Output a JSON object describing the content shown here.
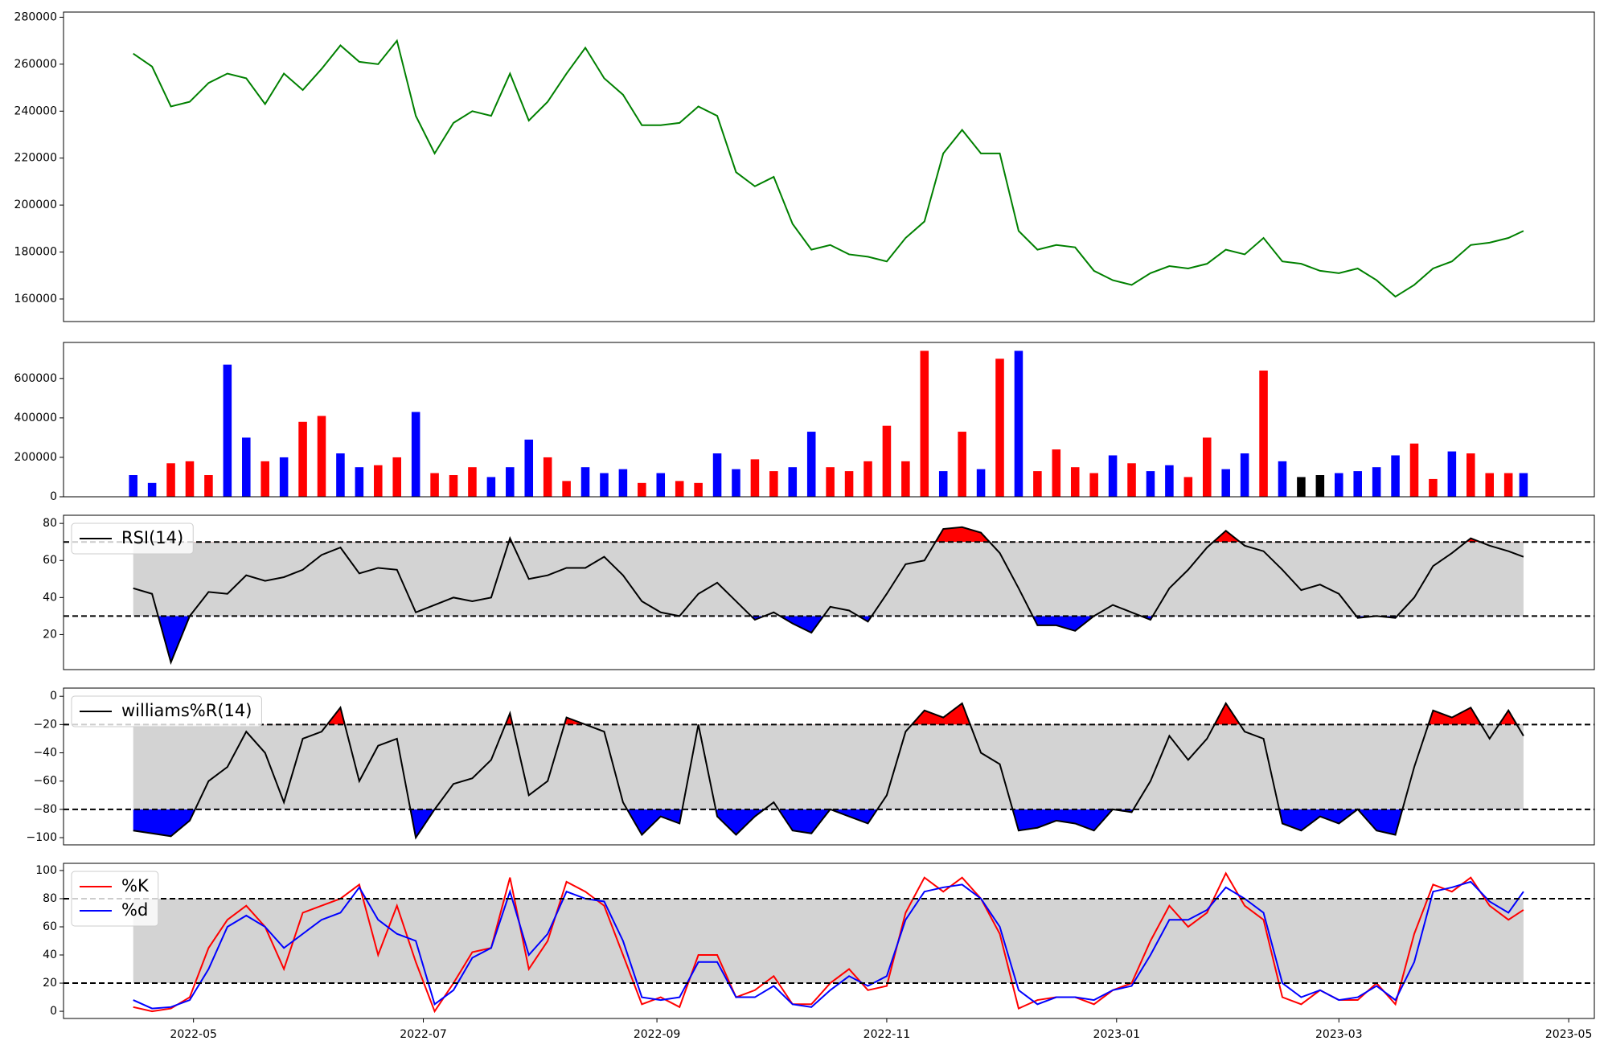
{
  "chart_data": [
    {
      "type": "line",
      "x": [
        19097,
        19102,
        19107,
        19112,
        19117,
        19122,
        19127,
        19132,
        19137,
        19142,
        19147,
        19152,
        19157,
        19162,
        19167,
        19172,
        19177,
        19182,
        19187,
        19192,
        19197,
        19202,
        19207,
        19212,
        19217,
        19222,
        19227,
        19232,
        19237,
        19242,
        19247,
        19252,
        19257,
        19262,
        19267,
        19272,
        19277,
        19282,
        19287,
        19292,
        19297,
        19302,
        19307,
        19312,
        19317,
        19322,
        19327,
        19332,
        19337,
        19342,
        19347,
        19352,
        19357,
        19362,
        19367,
        19372,
        19377,
        19382,
        19387,
        19392,
        19397,
        19402,
        19407,
        19412,
        19417,
        19422,
        19427,
        19432,
        19437,
        19442,
        19447,
        19452,
        19457,
        19462,
        19466
      ],
      "xlim": [
        19078.5,
        19484.8
      ],
      "ylim": [
        150400,
        282200
      ],
      "yticks": [
        160000,
        180000,
        200000,
        220000,
        240000,
        260000,
        280000
      ],
      "series": [
        {
          "color": "green",
          "values": [
            264500,
            259000,
            242000,
            244000,
            252000,
            256000,
            254000,
            243000,
            256000,
            249000,
            258000,
            268000,
            261000,
            260000,
            270000,
            238000,
            222000,
            235000,
            240000,
            238000,
            256000,
            236000,
            244000,
            256000,
            267000,
            254000,
            247000,
            234000,
            234000,
            235000,
            242000,
            238000,
            214000,
            208000,
            212000,
            192000,
            181000,
            183000,
            179000,
            178000,
            176000,
            186000,
            193000,
            222000,
            232000,
            222000,
            222000,
            189000,
            181000,
            183000,
            182000,
            172000,
            168000,
            166000,
            171000,
            174000,
            173000,
            175000,
            181000,
            179000,
            186000,
            176000,
            175000,
            172000,
            171000,
            173000,
            168000,
            161000,
            166000,
            173000,
            176000,
            183000,
            184000,
            186000,
            189000
          ]
        }
      ]
    },
    {
      "type": "bar",
      "x": [
        19097,
        19102,
        19107,
        19112,
        19117,
        19122,
        19127,
        19132,
        19137,
        19142,
        19147,
        19152,
        19157,
        19162,
        19167,
        19172,
        19177,
        19182,
        19187,
        19192,
        19197,
        19202,
        19207,
        19212,
        19217,
        19222,
        19227,
        19232,
        19237,
        19242,
        19247,
        19252,
        19257,
        19262,
        19267,
        19272,
        19277,
        19282,
        19287,
        19292,
        19297,
        19302,
        19307,
        19312,
        19317,
        19322,
        19327,
        19332,
        19337,
        19342,
        19347,
        19352,
        19357,
        19362,
        19367,
        19372,
        19377,
        19382,
        19387,
        19392,
        19397,
        19402,
        19407,
        19412,
        19417,
        19422,
        19427,
        19432,
        19437,
        19442,
        19447,
        19452,
        19457,
        19462,
        19466
      ],
      "xlim": [
        19078.5,
        19484.8
      ],
      "ylim": [
        0,
        782600
      ],
      "yticks": [
        0,
        200000,
        400000,
        600000
      ],
      "values": [
        110000,
        70000,
        170000,
        180000,
        110000,
        670000,
        300000,
        180000,
        200000,
        380000,
        410000,
        220000,
        150000,
        160000,
        200000,
        430000,
        120000,
        110000,
        150000,
        100000,
        150000,
        290000,
        200000,
        80000,
        150000,
        120000,
        140000,
        70000,
        120000,
        80000,
        70000,
        220000,
        140000,
        190000,
        130000,
        150000,
        330000,
        150000,
        130000,
        180000,
        360000,
        180000,
        740000,
        130000,
        330000,
        140000,
        700000,
        740000,
        130000,
        240000,
        150000,
        120000,
        210000,
        170000,
        130000,
        160000,
        100000,
        300000,
        140000,
        220000,
        640000,
        180000,
        100000,
        110000,
        120000,
        130000,
        150000,
        210000,
        270000,
        90000,
        230000,
        220000,
        120000,
        120000,
        120000
      ],
      "bar_colors": [
        "blue",
        "blue",
        "red",
        "red",
        "red",
        "blue",
        "blue",
        "red",
        "blue",
        "red",
        "red",
        "blue",
        "blue",
        "red",
        "red",
        "blue",
        "red",
        "red",
        "red",
        "blue",
        "blue",
        "blue",
        "red",
        "red",
        "blue",
        "blue",
        "blue",
        "red",
        "blue",
        "red",
        "red",
        "blue",
        "blue",
        "red",
        "red",
        "blue",
        "blue",
        "red",
        "red",
        "red",
        "red",
        "red",
        "red",
        "blue",
        "red",
        "blue",
        "red",
        "blue",
        "red",
        "red",
        "red",
        "red",
        "blue",
        "red",
        "blue",
        "blue",
        "red",
        "red",
        "blue",
        "blue",
        "red",
        "blue",
        "black",
        "black",
        "blue",
        "blue",
        "blue",
        "blue",
        "red",
        "red",
        "blue",
        "red",
        "red",
        "red",
        "blue"
      ]
    },
    {
      "type": "line",
      "x": [
        19097,
        19102,
        19107,
        19112,
        19117,
        19122,
        19127,
        19132,
        19137,
        19142,
        19147,
        19152,
        19157,
        19162,
        19167,
        19172,
        19177,
        19182,
        19187,
        19192,
        19197,
        19202,
        19207,
        19212,
        19217,
        19222,
        19227,
        19232,
        19237,
        19242,
        19247,
        19252,
        19257,
        19262,
        19267,
        19272,
        19277,
        19282,
        19287,
        19292,
        19297,
        19302,
        19307,
        19312,
        19317,
        19322,
        19327,
        19332,
        19337,
        19342,
        19347,
        19352,
        19357,
        19362,
        19367,
        19372,
        19377,
        19382,
        19387,
        19392,
        19397,
        19402,
        19407,
        19412,
        19417,
        19422,
        19427,
        19432,
        19437,
        19442,
        19447,
        19452,
        19457,
        19462,
        19466
      ],
      "xlim": [
        19078.5,
        19484.8
      ],
      "ylim": [
        1.1,
        84.4
      ],
      "yticks": [
        20,
        40,
        60,
        80
      ],
      "hlines": [
        70,
        30
      ],
      "band_color": "#d3d3d3",
      "above_color": "red",
      "below_color": "blue",
      "legend": "upper left",
      "series": [
        {
          "name": "RSI(14)",
          "color": "black",
          "values": [
            45,
            42,
            5,
            30,
            43,
            42,
            52,
            49,
            51,
            55,
            63,
            67,
            53,
            56,
            55,
            32,
            36,
            40,
            38,
            40,
            72,
            50,
            52,
            56,
            56,
            62,
            52,
            38,
            32,
            30,
            42,
            48,
            38,
            28,
            32,
            26,
            21,
            35,
            33,
            27,
            42,
            58,
            60,
            77,
            78,
            75,
            64,
            45,
            25,
            25,
            22,
            30,
            36,
            32,
            28,
            45,
            55,
            67,
            76,
            68,
            65,
            55,
            44,
            47,
            42,
            29,
            30,
            29,
            40,
            57,
            64,
            72,
            68,
            65,
            62
          ]
        }
      ]
    },
    {
      "type": "line",
      "x": [
        19097,
        19102,
        19107,
        19112,
        19117,
        19122,
        19127,
        19132,
        19137,
        19142,
        19147,
        19152,
        19157,
        19162,
        19167,
        19172,
        19177,
        19182,
        19187,
        19192,
        19197,
        19202,
        19207,
        19212,
        19217,
        19222,
        19227,
        19232,
        19237,
        19242,
        19247,
        19252,
        19257,
        19262,
        19267,
        19272,
        19277,
        19282,
        19287,
        19292,
        19297,
        19302,
        19307,
        19312,
        19317,
        19322,
        19327,
        19332,
        19337,
        19342,
        19347,
        19352,
        19357,
        19362,
        19367,
        19372,
        19377,
        19382,
        19387,
        19392,
        19397,
        19402,
        19407,
        19412,
        19417,
        19422,
        19427,
        19432,
        19437,
        19442,
        19447,
        19452,
        19457,
        19462,
        19466
      ],
      "xlim": [
        19078.5,
        19484.8
      ],
      "ylim": [
        -105.1,
        5.8
      ],
      "yticks": [
        {
          "value": -100,
          "label": "−100"
        },
        {
          "value": -80,
          "label": "−80"
        },
        {
          "value": -60,
          "label": "−60"
        },
        {
          "value": -40,
          "label": "−40"
        },
        {
          "value": -20,
          "label": "−20"
        },
        0
      ],
      "hlines": [
        -20,
        -80
      ],
      "band_color": "#d3d3d3",
      "above_color": "red",
      "below_color": "blue",
      "legend": "upper left",
      "series": [
        {
          "name": "williams%R(14)",
          "color": "black",
          "values": [
            -95,
            -97,
            -99,
            -88,
            -60,
            -50,
            -25,
            -40,
            -75,
            -30,
            -25,
            -8,
            -60,
            -35,
            -30,
            -100,
            -80,
            -62,
            -58,
            -45,
            -12,
            -70,
            -60,
            -15,
            -20,
            -25,
            -75,
            -98,
            -85,
            -90,
            -20,
            -85,
            -98,
            -85,
            -75,
            -95,
            -97,
            -80,
            -85,
            -90,
            -70,
            -25,
            -10,
            -15,
            -5,
            -40,
            -48,
            -95,
            -93,
            -88,
            -90,
            -95,
            -80,
            -82,
            -60,
            -28,
            -45,
            -30,
            -5,
            -25,
            -30,
            -90,
            -95,
            -85,
            -90,
            -80,
            -95,
            -98,
            -50,
            -10,
            -15,
            -8,
            -30,
            -10,
            -28
          ]
        }
      ]
    },
    {
      "type": "line",
      "x": [
        19097,
        19102,
        19107,
        19112,
        19117,
        19122,
        19127,
        19132,
        19137,
        19142,
        19147,
        19152,
        19157,
        19162,
        19167,
        19172,
        19177,
        19182,
        19187,
        19192,
        19197,
        19202,
        19207,
        19212,
        19217,
        19222,
        19227,
        19232,
        19237,
        19242,
        19247,
        19252,
        19257,
        19262,
        19267,
        19272,
        19277,
        19282,
        19287,
        19292,
        19297,
        19302,
        19307,
        19312,
        19317,
        19322,
        19327,
        19332,
        19337,
        19342,
        19347,
        19352,
        19357,
        19362,
        19367,
        19372,
        19377,
        19382,
        19387,
        19392,
        19397,
        19402,
        19407,
        19412,
        19417,
        19422,
        19427,
        19432,
        19437,
        19442,
        19447,
        19452,
        19457,
        19462,
        19466
      ],
      "xlim": [
        19078.5,
        19484.8
      ],
      "ylim": [
        -5.1,
        105.1
      ],
      "yticks": [
        0,
        20,
        40,
        60,
        80,
        100
      ],
      "xticks": [
        {
          "value": 19113,
          "label": "2022-05"
        },
        {
          "value": 19174,
          "label": "2022-07"
        },
        {
          "value": 19236,
          "label": "2022-09"
        },
        {
          "value": 19297,
          "label": "2022-11"
        },
        {
          "value": 19358,
          "label": "2023-01"
        },
        {
          "value": 19417,
          "label": "2023-03"
        },
        {
          "value": 19478,
          "label": "2023-05"
        }
      ],
      "hlines": [
        80,
        20
      ],
      "band_color": "#d3d3d3",
      "legend": "upper left",
      "series": [
        {
          "name": "%K",
          "color": "red",
          "values": [
            3,
            0,
            2,
            10,
            45,
            65,
            75,
            60,
            30,
            70,
            75,
            80,
            90,
            40,
            75,
            35,
            0,
            20,
            42,
            45,
            95,
            30,
            50,
            92,
            85,
            75,
            40,
            5,
            10,
            3,
            40,
            40,
            10,
            15,
            25,
            5,
            5,
            20,
            30,
            15,
            18,
            70,
            95,
            85,
            95,
            80,
            55,
            2,
            8,
            10,
            10,
            5,
            15,
            20,
            50,
            75,
            60,
            70,
            98,
            75,
            65,
            10,
            5,
            15,
            8,
            8,
            20,
            5,
            55,
            90,
            85,
            95,
            75,
            65,
            72
          ]
        },
        {
          "name": "%d",
          "color": "blue",
          "values": [
            8,
            2,
            3,
            8,
            30,
            60,
            68,
            60,
            45,
            55,
            65,
            70,
            88,
            65,
            55,
            50,
            5,
            15,
            38,
            45,
            85,
            40,
            55,
            85,
            80,
            78,
            50,
            10,
            8,
            10,
            35,
            35,
            10,
            10,
            18,
            5,
            3,
            15,
            25,
            18,
            25,
            65,
            85,
            88,
            90,
            80,
            60,
            15,
            5,
            10,
            10,
            8,
            15,
            18,
            40,
            65,
            65,
            72,
            88,
            80,
            70,
            20,
            10,
            15,
            8,
            10,
            18,
            8,
            35,
            85,
            88,
            92,
            78,
            70,
            85
          ]
        }
      ]
    }
  ]
}
